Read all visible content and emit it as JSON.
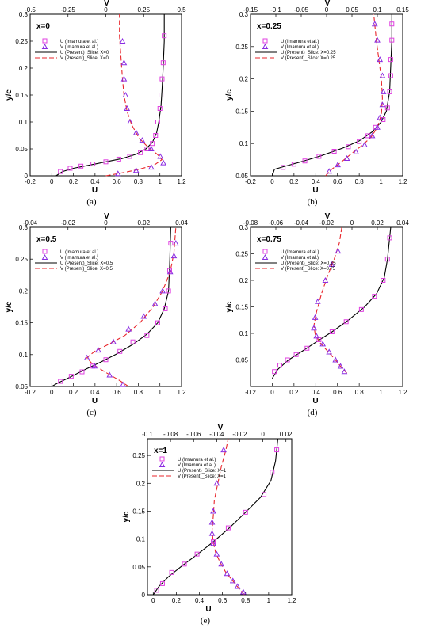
{
  "colors": {
    "u_present": "#000000",
    "v_present": "#e8262b",
    "u_exp": "#e040e0",
    "v_exp": "#8a2be2"
  },
  "legend_entries": [
    "U (Imamura et al.)",
    "V (Imamura et al.)"
  ],
  "chart_data": [
    {
      "type": "line",
      "label": "(a)",
      "title": "x=0",
      "xlabel": "U",
      "x2label": "V",
      "ylabel": "y/c",
      "xlim": [
        -0.2,
        1.2
      ],
      "x2lim": [
        -0.5,
        0.5
      ],
      "ylim": [
        0,
        0.3
      ],
      "xticks": [
        "-0.2",
        "0",
        "0.2",
        "0.4",
        "0.6",
        "0.8",
        "1",
        "1.2"
      ],
      "x2ticks": [
        "-0.5",
        "-0.25",
        "0",
        "0.25",
        "0.5"
      ],
      "yticks": [
        "0",
        "0.05",
        "0.1",
        "0.15",
        "0.2",
        "0.25",
        "0.3"
      ],
      "legend_present": [
        "U (Present)_Slice: X=0",
        "V (Present)_Slice: X=0"
      ],
      "u_exp": [
        [
          0.08,
          0.008
        ],
        [
          0.17,
          0.014
        ],
        [
          0.27,
          0.018
        ],
        [
          0.38,
          0.022
        ],
        [
          0.5,
          0.026
        ],
        [
          0.62,
          0.031
        ],
        [
          0.72,
          0.036
        ],
        [
          0.82,
          0.043
        ],
        [
          0.88,
          0.05
        ],
        [
          0.93,
          0.06
        ],
        [
          0.96,
          0.075
        ],
        [
          0.98,
          0.1
        ],
        [
          1.0,
          0.125
        ],
        [
          1.01,
          0.15
        ],
        [
          1.02,
          0.18
        ],
        [
          1.03,
          0.21
        ],
        [
          1.04,
          0.26
        ]
      ],
      "v_exp": [
        [
          0.08,
          0.004
        ],
        [
          0.2,
          0.01
        ],
        [
          0.3,
          0.016
        ],
        [
          0.38,
          0.024
        ],
        [
          0.36,
          0.036
        ],
        [
          0.3,
          0.05
        ],
        [
          0.24,
          0.066
        ],
        [
          0.2,
          0.08
        ],
        [
          0.16,
          0.1
        ],
        [
          0.14,
          0.125
        ],
        [
          0.13,
          0.15
        ],
        [
          0.12,
          0.18
        ],
        [
          0.12,
          0.21
        ],
        [
          0.11,
          0.25
        ]
      ],
      "u_line": [
        [
          0.04,
          0
        ],
        [
          0.1,
          0.008
        ],
        [
          0.2,
          0.014
        ],
        [
          0.35,
          0.02
        ],
        [
          0.5,
          0.026
        ],
        [
          0.65,
          0.032
        ],
        [
          0.78,
          0.04
        ],
        [
          0.87,
          0.05
        ],
        [
          0.93,
          0.062
        ],
        [
          0.97,
          0.08
        ],
        [
          0.99,
          0.1
        ],
        [
          1.01,
          0.13
        ],
        [
          1.02,
          0.16
        ],
        [
          1.03,
          0.2
        ],
        [
          1.04,
          0.25
        ],
        [
          1.04,
          0.3
        ]
      ],
      "v_line": [
        [
          0.0,
          0.0
        ],
        [
          0.1,
          0.005
        ],
        [
          0.22,
          0.012
        ],
        [
          0.32,
          0.02
        ],
        [
          0.37,
          0.03
        ],
        [
          0.34,
          0.04
        ],
        [
          0.28,
          0.053
        ],
        [
          0.22,
          0.07
        ],
        [
          0.17,
          0.095
        ],
        [
          0.14,
          0.12
        ],
        [
          0.12,
          0.15
        ],
        [
          0.11,
          0.18
        ],
        [
          0.1,
          0.22
        ],
        [
          0.09,
          0.26
        ],
        [
          0.09,
          0.3
        ]
      ]
    },
    {
      "type": "line",
      "label": "(b)",
      "title": "x=0.25",
      "xlabel": "U",
      "x2label": "V",
      "ylabel": "y/c",
      "xlim": [
        -0.2,
        1.2
      ],
      "x2lim": [
        -0.15,
        0.15
      ],
      "ylim": [
        0.05,
        0.3
      ],
      "xticks": [
        "-0.2",
        "0",
        "0.2",
        "0.4",
        "0.6",
        "0.8",
        "1",
        "1.2"
      ],
      "x2ticks": [
        "-0.15",
        "-0.1",
        "-0.05",
        "0",
        "0.05",
        "0.1",
        "0.15"
      ],
      "yticks": [
        "0.05",
        "0.1",
        "0.15",
        "0.2",
        "0.25",
        "0.3"
      ],
      "legend_present": [
        "U (Present)_Slice: X=0.25",
        "V (Present)_Slice: X=0.25"
      ],
      "u_exp": [
        [
          0.1,
          0.063
        ],
        [
          0.2,
          0.068
        ],
        [
          0.3,
          0.073
        ],
        [
          0.43,
          0.08
        ],
        [
          0.57,
          0.088
        ],
        [
          0.7,
          0.095
        ],
        [
          0.8,
          0.103
        ],
        [
          0.88,
          0.112
        ],
        [
          0.95,
          0.125
        ],
        [
          1.02,
          0.137
        ],
        [
          1.06,
          0.155
        ],
        [
          1.08,
          0.18
        ],
        [
          1.09,
          0.205
        ],
        [
          1.09,
          0.23
        ],
        [
          1.1,
          0.26
        ],
        [
          1.1,
          0.285
        ]
      ],
      "v_exp": [
        [
          0.005,
          0.057
        ],
        [
          0.022,
          0.067
        ],
        [
          0.04,
          0.077
        ],
        [
          0.058,
          0.087
        ],
        [
          0.075,
          0.098
        ],
        [
          0.09,
          0.112
        ],
        [
          0.1,
          0.125
        ],
        [
          0.105,
          0.14
        ],
        [
          0.11,
          0.16
        ],
        [
          0.112,
          0.18
        ],
        [
          0.11,
          0.205
        ],
        [
          0.105,
          0.23
        ],
        [
          0.1,
          0.26
        ],
        [
          0.095,
          0.285
        ]
      ],
      "u_line": [
        [
          0.0,
          0.05
        ],
        [
          0.02,
          0.06
        ],
        [
          0.1,
          0.064
        ],
        [
          0.25,
          0.071
        ],
        [
          0.45,
          0.081
        ],
        [
          0.65,
          0.093
        ],
        [
          0.8,
          0.104
        ],
        [
          0.92,
          0.118
        ],
        [
          1.0,
          0.133
        ],
        [
          1.05,
          0.15
        ],
        [
          1.08,
          0.18
        ],
        [
          1.09,
          0.22
        ],
        [
          1.1,
          0.26
        ],
        [
          1.1,
          0.3
        ]
      ],
      "v_line": [
        [
          -0.002,
          0.05
        ],
        [
          0.01,
          0.06
        ],
        [
          0.03,
          0.072
        ],
        [
          0.05,
          0.085
        ],
        [
          0.07,
          0.097
        ],
        [
          0.088,
          0.11
        ],
        [
          0.1,
          0.125
        ],
        [
          0.108,
          0.145
        ],
        [
          0.11,
          0.17
        ],
        [
          0.108,
          0.2
        ],
        [
          0.103,
          0.23
        ],
        [
          0.098,
          0.26
        ],
        [
          0.093,
          0.3
        ]
      ]
    },
    {
      "type": "line",
      "label": "(c)",
      "title": "x=0.5",
      "xlabel": "U",
      "x2label": "V",
      "ylabel": "y/c",
      "xlim": [
        -0.2,
        1.2
      ],
      "x2lim": [
        -0.04,
        0.04
      ],
      "ylim": [
        0.05,
        0.3
      ],
      "xticks": [
        "-0.2",
        "0",
        "0.2",
        "0.4",
        "0.6",
        "0.8",
        "1",
        "1.2"
      ],
      "x2ticks": [
        "-0.04",
        "-0.02",
        "0",
        "0.02",
        "0.04"
      ],
      "yticks": [
        "0.05",
        "0.1",
        "0.15",
        "0.2",
        "0.25",
        "0.3"
      ],
      "legend_present": [
        "U (Present)_Slice: X=0.5",
        "V (Present)_Slice: X=0.5"
      ],
      "u_exp": [
        [
          0.08,
          0.058
        ],
        [
          0.18,
          0.066
        ],
        [
          0.28,
          0.073
        ],
        [
          0.38,
          0.082
        ],
        [
          0.5,
          0.092
        ],
        [
          0.63,
          0.105
        ],
        [
          0.75,
          0.12
        ],
        [
          0.88,
          0.13
        ],
        [
          0.98,
          0.15
        ],
        [
          1.05,
          0.172
        ],
        [
          1.08,
          0.2
        ],
        [
          1.09,
          0.232
        ],
        [
          1.1,
          0.275
        ]
      ],
      "v_exp": [
        [
          0.009,
          0.053
        ],
        [
          0.002,
          0.068
        ],
        [
          -0.006,
          0.082
        ],
        [
          -0.01,
          0.095
        ],
        [
          -0.004,
          0.107
        ],
        [
          0.004,
          0.12
        ],
        [
          0.012,
          0.14
        ],
        [
          0.02,
          0.16
        ],
        [
          0.026,
          0.18
        ],
        [
          0.03,
          0.2
        ],
        [
          0.034,
          0.23
        ],
        [
          0.036,
          0.255
        ],
        [
          0.037,
          0.275
        ]
      ],
      "u_line": [
        [
          0.0,
          0.05
        ],
        [
          0.05,
          0.055
        ],
        [
          0.15,
          0.063
        ],
        [
          0.3,
          0.076
        ],
        [
          0.45,
          0.088
        ],
        [
          0.6,
          0.101
        ],
        [
          0.75,
          0.116
        ],
        [
          0.88,
          0.132
        ],
        [
          0.98,
          0.15
        ],
        [
          1.04,
          0.172
        ],
        [
          1.08,
          0.2
        ],
        [
          1.09,
          0.24
        ],
        [
          1.1,
          0.3
        ]
      ],
      "v_line": [
        [
          0.012,
          0.05
        ],
        [
          0.007,
          0.06
        ],
        [
          0.0,
          0.072
        ],
        [
          -0.007,
          0.085
        ],
        [
          -0.01,
          0.095
        ],
        [
          -0.006,
          0.105
        ],
        [
          0.002,
          0.117
        ],
        [
          0.01,
          0.13
        ],
        [
          0.018,
          0.15
        ],
        [
          0.025,
          0.175
        ],
        [
          0.03,
          0.2
        ],
        [
          0.034,
          0.23
        ],
        [
          0.036,
          0.26
        ],
        [
          0.037,
          0.3
        ]
      ]
    },
    {
      "type": "line",
      "label": "(d)",
      "title": "x=0.75",
      "xlabel": "U",
      "x2label": "V",
      "ylabel": "y/c",
      "xlim": [
        -0.2,
        1.2
      ],
      "x2lim": [
        -0.08,
        0.04
      ],
      "ylim": [
        0,
        0.3
      ],
      "xticks": [
        "-0.2",
        "0",
        "0.2",
        "0.4",
        "0.6",
        "0.8",
        "1",
        "1.2"
      ],
      "x2ticks": [
        "-0.08",
        "-0.06",
        "-0.04",
        "-0.02",
        "0",
        "0.02",
        "0.04"
      ],
      "yticks": [
        "0.05",
        "0.1",
        "0.15",
        "0.2",
        "0.25",
        "0.3"
      ],
      "legend_present": [
        "U (Present)_Slice: X=0.75",
        "V (Present)_Slice: X=0.75"
      ],
      "u_exp": [
        [
          0.02,
          0.028
        ],
        [
          0.07,
          0.04
        ],
        [
          0.14,
          0.05
        ],
        [
          0.22,
          0.06
        ],
        [
          0.32,
          0.072
        ],
        [
          0.43,
          0.088
        ],
        [
          0.55,
          0.103
        ],
        [
          0.68,
          0.122
        ],
        [
          0.82,
          0.145
        ],
        [
          0.94,
          0.17
        ],
        [
          1.02,
          0.2
        ],
        [
          1.06,
          0.24
        ],
        [
          1.08,
          0.28
        ]
      ],
      "v_exp": [
        [
          -0.006,
          0.028
        ],
        [
          -0.009,
          0.038
        ],
        [
          -0.013,
          0.05
        ],
        [
          -0.018,
          0.065
        ],
        [
          -0.023,
          0.08
        ],
        [
          -0.028,
          0.095
        ],
        [
          -0.03,
          0.11
        ],
        [
          -0.029,
          0.13
        ],
        [
          -0.027,
          0.16
        ],
        [
          -0.021,
          0.2
        ],
        [
          -0.016,
          0.23
        ],
        [
          -0.011,
          0.255
        ]
      ],
      "u_line": [
        [
          0.0,
          0.015
        ],
        [
          0.05,
          0.032
        ],
        [
          0.15,
          0.05
        ],
        [
          0.28,
          0.067
        ],
        [
          0.42,
          0.086
        ],
        [
          0.55,
          0.103
        ],
        [
          0.7,
          0.125
        ],
        [
          0.85,
          0.15
        ],
        [
          0.96,
          0.175
        ],
        [
          1.03,
          0.205
        ],
        [
          1.06,
          0.24
        ],
        [
          1.08,
          0.28
        ],
        [
          1.09,
          0.3
        ]
      ],
      "v_line": [
        [
          -0.004,
          0.025
        ],
        [
          -0.008,
          0.035
        ],
        [
          -0.013,
          0.05
        ],
        [
          -0.019,
          0.066
        ],
        [
          -0.025,
          0.082
        ],
        [
          -0.029,
          0.098
        ],
        [
          -0.03,
          0.115
        ],
        [
          -0.028,
          0.14
        ],
        [
          -0.024,
          0.175
        ],
        [
          -0.019,
          0.21
        ],
        [
          -0.014,
          0.24
        ],
        [
          -0.01,
          0.27
        ],
        [
          -0.008,
          0.3
        ]
      ]
    },
    {
      "type": "line",
      "label": "(e)",
      "title": "x=1",
      "xlabel": "U",
      "x2label": "V",
      "ylabel": "y/c",
      "xlim": [
        -0.05,
        1.2
      ],
      "x2lim": [
        -0.1,
        0.025
      ],
      "ylim": [
        0,
        0.28
      ],
      "xticks": [
        "0",
        "0.2",
        "0.4",
        "0.6",
        "0.8",
        "1",
        "1.2"
      ],
      "x2ticks": [
        "-0.1",
        "-0.08",
        "-0.06",
        "-0.04",
        "-0.02",
        "0",
        "0.02"
      ],
      "yticks": [
        "0",
        "0.05",
        "0.1",
        "0.15",
        "0.2",
        "0.25"
      ],
      "legend_present": [
        "U (Present)_Slice: X=1",
        "V (Present)_Slice: X=1"
      ],
      "u_exp": [
        [
          0.03,
          0.008
        ],
        [
          0.08,
          0.02
        ],
        [
          0.16,
          0.04
        ],
        [
          0.27,
          0.055
        ],
        [
          0.38,
          0.073
        ],
        [
          0.52,
          0.095
        ],
        [
          0.65,
          0.12
        ],
        [
          0.8,
          0.148
        ],
        [
          0.96,
          0.18
        ],
        [
          1.03,
          0.22
        ],
        [
          1.07,
          0.26
        ]
      ],
      "v_exp": [
        [
          -0.017,
          0.005
        ],
        [
          -0.022,
          0.015
        ],
        [
          -0.026,
          0.025
        ],
        [
          -0.031,
          0.038
        ],
        [
          -0.036,
          0.055
        ],
        [
          -0.04,
          0.073
        ],
        [
          -0.043,
          0.092
        ],
        [
          -0.044,
          0.11
        ],
        [
          -0.044,
          0.13
        ],
        [
          -0.043,
          0.15
        ],
        [
          -0.04,
          0.2
        ],
        [
          -0.034,
          0.26
        ]
      ],
      "u_line": [
        [
          0.0,
          0.0
        ],
        [
          0.05,
          0.015
        ],
        [
          0.13,
          0.032
        ],
        [
          0.25,
          0.052
        ],
        [
          0.38,
          0.072
        ],
        [
          0.52,
          0.095
        ],
        [
          0.66,
          0.12
        ],
        [
          0.8,
          0.148
        ],
        [
          0.93,
          0.175
        ],
        [
          1.02,
          0.205
        ],
        [
          1.06,
          0.24
        ],
        [
          1.08,
          0.28
        ]
      ],
      "v_line": [
        [
          -0.016,
          0.0
        ],
        [
          -0.021,
          0.012
        ],
        [
          -0.026,
          0.025
        ],
        [
          -0.032,
          0.04
        ],
        [
          -0.037,
          0.058
        ],
        [
          -0.041,
          0.076
        ],
        [
          -0.043,
          0.095
        ],
        [
          -0.044,
          0.115
        ],
        [
          -0.043,
          0.14
        ],
        [
          -0.042,
          0.17
        ],
        [
          -0.039,
          0.2
        ],
        [
          -0.036,
          0.23
        ],
        [
          -0.032,
          0.26
        ],
        [
          -0.03,
          0.28
        ]
      ]
    }
  ]
}
